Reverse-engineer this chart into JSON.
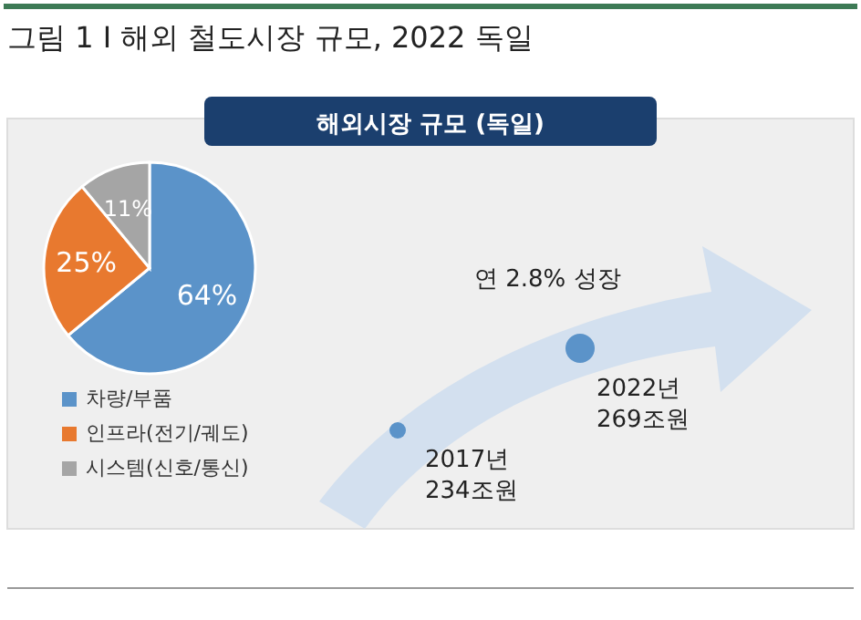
{
  "chart_data": {
    "type": "pie",
    "title": "그림 1 Ι 해외 철도시장 규모, 2022 독일",
    "subtitle": "해외시장 규모 (독일)",
    "categories": [
      "차량/부품",
      "인프라(전기/궤도)",
      "시스템(신호/통신)"
    ],
    "values": [
      64,
      25,
      11
    ],
    "colors": [
      "#5b93c9",
      "#e8792f",
      "#a5a5a5"
    ],
    "value_labels": [
      "64%",
      "25%",
      "11%"
    ],
    "legend": "bottom left",
    "annotations": [
      "연 2.8% 성장",
      {
        "text": "2017년\n234조원"
      },
      {
        "text": "2022년\n269조원"
      }
    ]
  }
}
